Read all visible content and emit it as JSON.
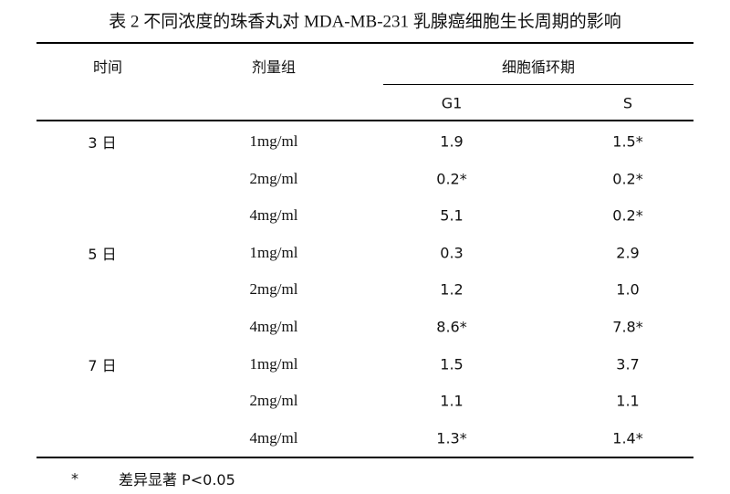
{
  "title": "表 2 不同浓度的珠香丸对 MDA-MB-231 乳腺癌细胞生长周期的影响",
  "header": {
    "time": "时间",
    "dose": "剂量组",
    "cycle": "细胞循环期",
    "g1": "G1",
    "s": "S"
  },
  "groups": [
    {
      "time": "3 日",
      "rows": [
        [
          "1mg/ml",
          "1.9",
          "1.5*"
        ],
        [
          "2mg/ml",
          "0.2*",
          "0.2*"
        ],
        [
          "4mg/ml",
          "5.1",
          "0.2*"
        ]
      ]
    },
    {
      "time": "5 日",
      "rows": [
        [
          "1mg/ml",
          "0.3",
          "2.9"
        ],
        [
          "2mg/ml",
          "1.2",
          "1.0"
        ],
        [
          "4mg/ml",
          "8.6*",
          "7.8*"
        ]
      ]
    },
    {
      "time": "7 日",
      "rows": [
        [
          "1mg/ml",
          "1.5",
          "3.7"
        ],
        [
          "2mg/ml",
          "1.1",
          "1.1"
        ],
        [
          "4mg/ml",
          "1.3*",
          "1.4*"
        ]
      ]
    }
  ],
  "footnote": {
    "mark": "*",
    "text": "差异显著 P<0.05"
  }
}
